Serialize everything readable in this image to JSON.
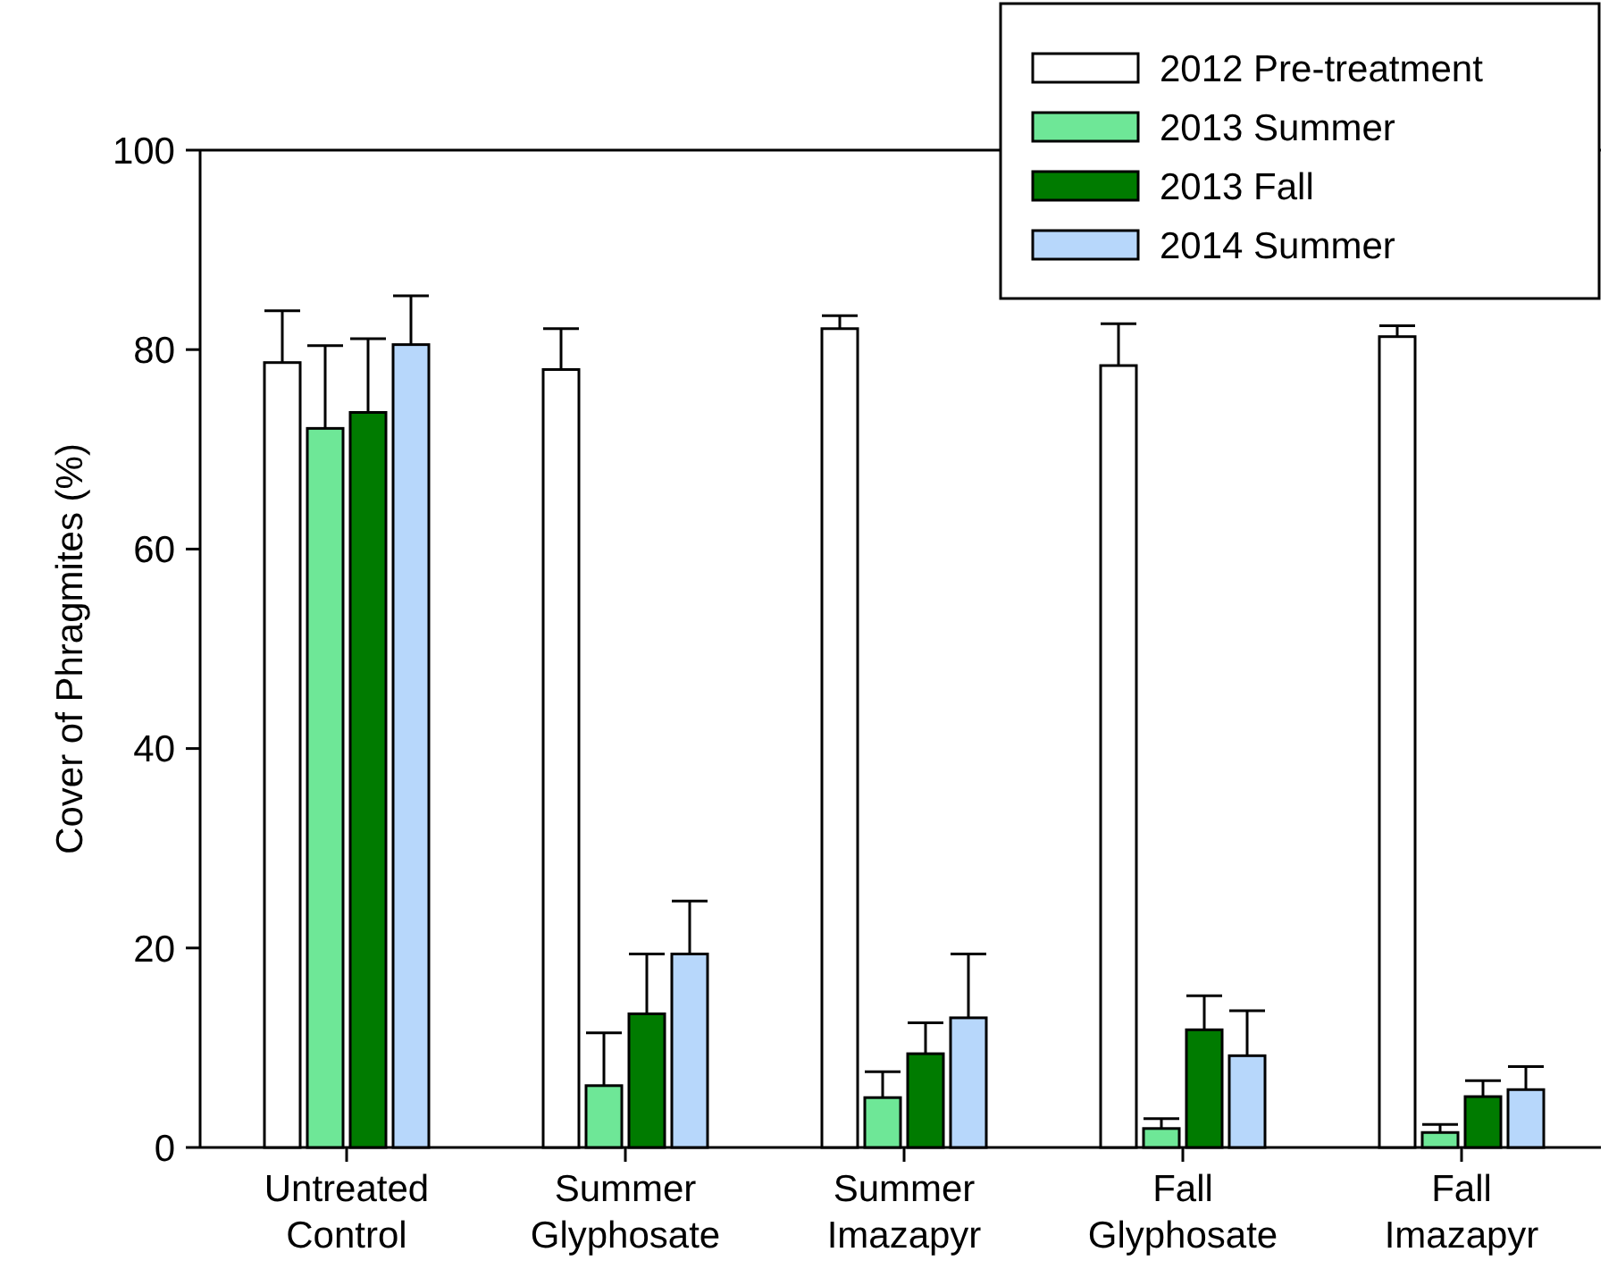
{
  "chart_data": {
    "type": "bar",
    "ylabel": "Cover of Phragmites (%)",
    "categories": [
      "Untreated Control",
      "Summer Glyphosate",
      "Summer Imazapyr",
      "Fall Glyphosate",
      "Fall Imazapyr"
    ],
    "series": [
      {
        "name": "2012 Pre-treatment",
        "color": "#ffffff",
        "values": [
          78.7,
          78.0,
          82.1,
          78.4,
          81.3
        ],
        "errors": [
          [
            78.7,
            83.9
          ],
          [
            78.0,
            82.1
          ],
          [
            82.1,
            83.4
          ],
          [
            78.4,
            82.6
          ],
          [
            81.3,
            82.4
          ]
        ]
      },
      {
        "name": "2013 Summer",
        "color": "#6ee797",
        "values": [
          72.1,
          6.2,
          5.0,
          1.9,
          1.5
        ],
        "errors": [
          [
            72.1,
            80.4
          ],
          [
            6.2,
            11.5
          ],
          [
            5.0,
            7.6
          ],
          [
            1.9,
            2.9
          ],
          [
            1.5,
            2.3
          ]
        ]
      },
      {
        "name": "2013 Fall",
        "color": "#007b00",
        "values": [
          73.7,
          13.4,
          9.4,
          11.8,
          5.1
        ],
        "errors": [
          [
            73.7,
            81.1
          ],
          [
            13.4,
            19.4
          ],
          [
            9.4,
            12.5
          ],
          [
            11.8,
            15.2
          ],
          [
            5.1,
            6.7
          ]
        ]
      },
      {
        "name": "2014 Summer",
        "color": "#b7d7fb",
        "values": [
          80.5,
          19.4,
          13.0,
          9.2,
          5.8
        ],
        "errors": [
          [
            80.5,
            85.4
          ],
          [
            19.4,
            24.7
          ],
          [
            13.0,
            19.4
          ],
          [
            9.2,
            13.7
          ],
          [
            5.8,
            8.1
          ]
        ]
      }
    ],
    "ylim": [
      0,
      100
    ],
    "yticks": [
      0,
      20,
      40,
      60,
      80,
      100
    ],
    "grid": false,
    "legend": "top right"
  }
}
